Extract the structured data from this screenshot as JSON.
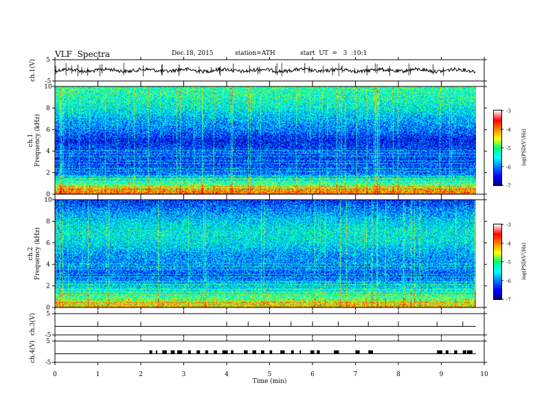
{
  "header": {
    "title": "VLF  Spectra",
    "date": "Dec.18, 2015",
    "station": "station=ATH",
    "start": "start  UT  =   3  :10:1"
  },
  "colors": {
    "colormap": [
      "#000080",
      "#0000ff",
      "#0080ff",
      "#00ffff",
      "#00ff80",
      "#ffff00",
      "#ff8000",
      "#ff0000",
      "#ffffff"
    ],
    "trace": "#000000",
    "axes": "#000000"
  },
  "chart_data": [
    {
      "type": "line",
      "name": "ch1-waveform",
      "ylabel": "ch.1(V)",
      "ylim": [
        -5,
        5
      ],
      "yticks": [
        "5",
        "-5"
      ],
      "mean": 0,
      "note_value": "noisy waveform around 0 V"
    },
    {
      "type": "heatmap",
      "name": "ch1-spectrogram",
      "ylabel": "ch.1\nFrequency  (kHz)",
      "ylabel_lines": [
        "ch.1",
        "Frequency  (kHz)"
      ],
      "ylim": [
        0,
        10
      ],
      "yticks": [
        "0",
        "2",
        "4",
        "6",
        "8",
        "10"
      ],
      "zlabel": "log(PSD(V²/Hz)",
      "zlim": [
        -7,
        -3
      ],
      "zticks": [
        "-3",
        "-4",
        "-5",
        "-6",
        "-7"
      ],
      "bands": [
        {
          "f": 0.3,
          "v": -3.6
        },
        {
          "f": 0.6,
          "v": -4.2
        },
        {
          "f": 1.0,
          "v": -4.8
        },
        {
          "f": 1.4,
          "v": -5.2
        },
        {
          "f": 2.0,
          "v": -6.0
        },
        {
          "f": 3.0,
          "v": -6.2
        },
        {
          "f": 4.0,
          "v": -6.1
        },
        {
          "f": 5.0,
          "v": -6.4
        },
        {
          "f": 6.0,
          "v": -5.9
        },
        {
          "f": 7.0,
          "v": -5.6
        },
        {
          "f": 8.0,
          "v": -5.2
        },
        {
          "f": 9.0,
          "v": -5.0
        },
        {
          "f": 10.0,
          "v": -4.9
        }
      ]
    },
    {
      "type": "heatmap",
      "name": "ch2-spectrogram",
      "ylabel": "ch.2\nFrequency  (kHz)",
      "ylabel_lines": [
        "ch.2",
        "Frequency  (kHz)"
      ],
      "ylim": [
        0,
        10
      ],
      "yticks": [
        "0",
        "2",
        "4",
        "6",
        "8",
        "10"
      ],
      "zlabel": "log(PSD(V²/Hz)",
      "zlim": [
        -7,
        -3
      ],
      "zticks": [
        "-3",
        "-4",
        "-5",
        "-6",
        "-7"
      ],
      "bands": [
        {
          "f": 0.3,
          "v": -4.0
        },
        {
          "f": 0.7,
          "v": -4.5
        },
        {
          "f": 1.2,
          "v": -5.0
        },
        {
          "f": 2.0,
          "v": -5.4
        },
        {
          "f": 3.0,
          "v": -6.1
        },
        {
          "f": 4.0,
          "v": -5.8
        },
        {
          "f": 5.0,
          "v": -5.7
        },
        {
          "f": 6.0,
          "v": -5.3
        },
        {
          "f": 7.0,
          "v": -5.2
        },
        {
          "f": 8.0,
          "v": -5.4
        },
        {
          "f": 9.0,
          "v": -5.8
        },
        {
          "f": 10.0,
          "v": -6.3
        }
      ]
    },
    {
      "type": "line",
      "name": "ch3-waveform",
      "ylabel": "ch.3(V)",
      "ylim": [
        -5,
        5
      ],
      "yticks": [
        "5",
        "-5"
      ],
      "mean": 0
    },
    {
      "type": "line",
      "name": "ch4-waveform",
      "ylabel": "ch.4(V)",
      "ylim": [
        -5,
        5
      ],
      "yticks": [
        "5",
        "-5"
      ],
      "mean": 0,
      "pulse_times_min": [
        2.2,
        2.35,
        2.5,
        2.7,
        2.85,
        3.1,
        3.3,
        3.5,
        3.7,
        3.9,
        4.1,
        4.4,
        4.6,
        4.8,
        5.0,
        5.25,
        5.5,
        5.7,
        5.95,
        6.1,
        6.5,
        7.0,
        7.3,
        8.9,
        9.1,
        9.3,
        9.5,
        9.6
      ]
    }
  ],
  "xaxis": {
    "label": "Time  (min)",
    "xlim": [
      0,
      10
    ],
    "ticks": [
      "0",
      "1",
      "2",
      "3",
      "4",
      "5",
      "6",
      "7",
      "8",
      "9",
      "10"
    ],
    "data_end_min": 9.8
  }
}
